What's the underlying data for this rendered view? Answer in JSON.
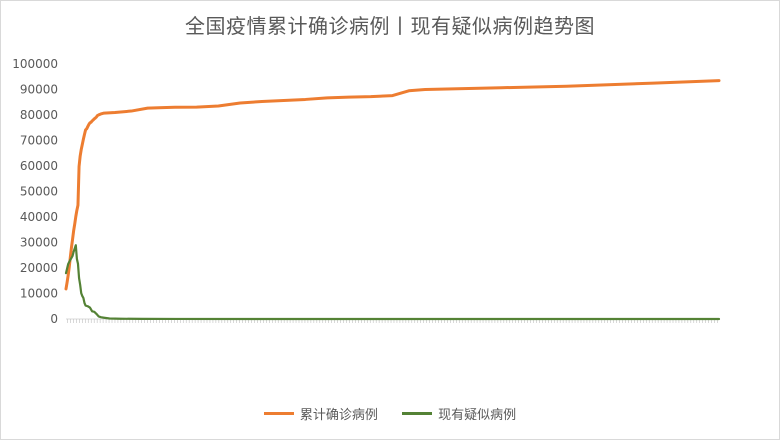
{
  "chart_data": {
    "type": "line",
    "title": "全国疫情累计确诊病例丨现有疑似病例趋势图",
    "xlabel": "",
    "ylabel": "",
    "ylim": [
      0,
      100000
    ],
    "y_ticks": [
      0,
      10000,
      20000,
      30000,
      40000,
      50000,
      60000,
      70000,
      80000,
      90000,
      100000
    ],
    "grid": false,
    "legend_position": "bottom",
    "x_points": 220,
    "series": [
      {
        "name": "累计确诊病例",
        "color": "#ed7d31",
        "keyframes": [
          [
            0,
            11791
          ],
          [
            1,
            14380
          ],
          [
            2,
            17205
          ],
          [
            3,
            20438
          ],
          [
            4,
            24324
          ],
          [
            5,
            28018
          ],
          [
            6,
            31161
          ],
          [
            7,
            34546
          ],
          [
            8,
            37198
          ],
          [
            9,
            40171
          ],
          [
            10,
            42638
          ],
          [
            11,
            44653
          ],
          [
            12,
            59804
          ],
          [
            13,
            63851
          ],
          [
            14,
            66492
          ],
          [
            15,
            68500
          ],
          [
            16,
            70548
          ],
          [
            17,
            72436
          ],
          [
            18,
            74185
          ],
          [
            19,
            74576
          ],
          [
            20,
            75465
          ],
          [
            21,
            76288
          ],
          [
            22,
            76936
          ],
          [
            23,
            77150
          ],
          [
            24,
            77658
          ],
          [
            25,
            78064
          ],
          [
            26,
            78497
          ],
          [
            27,
            78824
          ],
          [
            28,
            79251
          ],
          [
            29,
            79824
          ],
          [
            30,
            80026
          ],
          [
            32,
            80409
          ],
          [
            35,
            80754
          ],
          [
            45,
            80993
          ],
          [
            60,
            81554
          ],
          [
            75,
            82692
          ],
          [
            85,
            82830
          ],
          [
            100,
            83017
          ],
          [
            120,
            83100
          ],
          [
            140,
            83532
          ],
          [
            160,
            84700
          ],
          [
            180,
            85300
          ],
          [
            200,
            85700
          ],
          [
            220,
            86100
          ],
          [
            240,
            86700
          ],
          [
            260,
            87000
          ],
          [
            280,
            87200
          ],
          [
            300,
            87600
          ],
          [
            315,
            89500
          ],
          [
            330,
            90000
          ],
          [
            400,
            90700
          ],
          [
            460,
            91300
          ],
          [
            540,
            92500
          ],
          [
            600,
            93500
          ]
        ]
      },
      {
        "name": "现有疑似病例",
        "color": "#548235",
        "keyframes": [
          [
            0,
            17988
          ],
          [
            2,
            21558
          ],
          [
            4,
            23214
          ],
          [
            6,
            24702
          ],
          [
            7,
            26359
          ],
          [
            8,
            27657
          ],
          [
            9,
            28942
          ],
          [
            10,
            23589
          ],
          [
            11,
            21675
          ],
          [
            12,
            16067
          ],
          [
            13,
            13435
          ],
          [
            14,
            10109
          ],
          [
            15,
            9000
          ],
          [
            16,
            8228
          ],
          [
            17,
            6242
          ],
          [
            18,
            5248
          ],
          [
            20,
            5000
          ],
          [
            22,
            4500
          ],
          [
            24,
            3000
          ],
          [
            26,
            2800
          ],
          [
            28,
            2000
          ],
          [
            30,
            1000
          ],
          [
            32,
            700
          ],
          [
            35,
            500
          ],
          [
            40,
            200
          ],
          [
            50,
            100
          ],
          [
            70,
            50
          ],
          [
            100,
            20
          ],
          [
            200,
            10
          ],
          [
            600,
            3
          ]
        ]
      }
    ]
  }
}
